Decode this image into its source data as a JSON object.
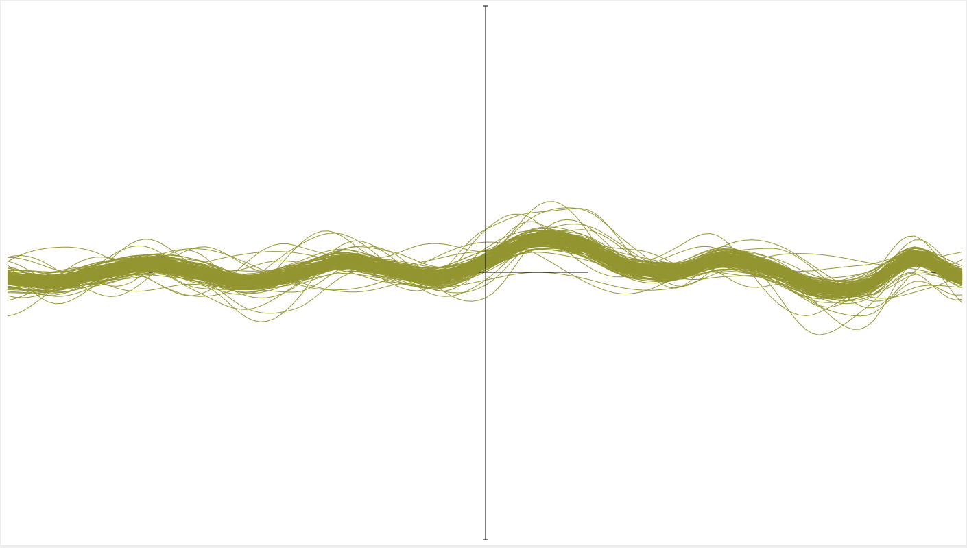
{
  "chart_data": {
    "type": "line",
    "title": "",
    "xlabel": "",
    "ylabel": "",
    "xlim": [
      -1,
      1
    ],
    "ylim": [
      -1,
      1
    ],
    "grid": false,
    "legend": "none",
    "x_ticks": [
      -0.7,
      0.94
    ],
    "series_color": "#939531",
    "axis_color": "#000000",
    "n_curves": 160,
    "mean_curve": {
      "x": [
        -1.0,
        -0.9,
        -0.8,
        -0.7,
        -0.6,
        -0.5,
        -0.4,
        -0.3,
        -0.2,
        -0.1,
        0.0,
        0.1,
        0.2,
        0.3,
        0.4,
        0.5,
        0.6,
        0.7,
        0.8,
        0.9,
        1.0
      ],
      "y": [
        -0.03,
        -0.04,
        0.0,
        0.03,
        0.0,
        -0.04,
        -0.01,
        0.04,
        0.01,
        -0.02,
        0.04,
        0.12,
        0.1,
        0.02,
        0.0,
        0.05,
        0.01,
        -0.06,
        -0.05,
        0.05,
        -0.02
      ]
    },
    "spread_y": 0.03
  }
}
